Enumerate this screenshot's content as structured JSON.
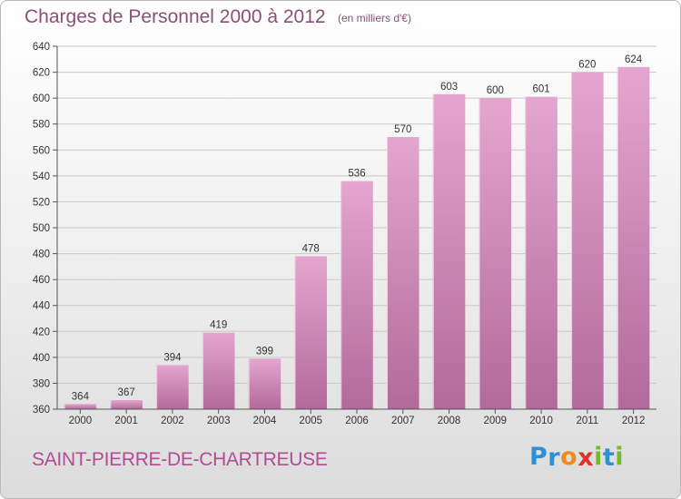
{
  "header": {
    "title": "Charges de Personnel 2000 à 2012",
    "unit": "(en milliers d'€)"
  },
  "footer": {
    "commune": "SAINT-PIERRE-DE-CHARTREUSE",
    "logo_letters": [
      {
        "char": "P",
        "color": "#2e8fd6"
      },
      {
        "char": "r",
        "color": "#2e8fd6"
      },
      {
        "char": "o",
        "color": "#f08a1c"
      },
      {
        "char": "x",
        "color": "#e2312b"
      },
      {
        "char": "i",
        "color": "#79b829"
      },
      {
        "char": "t",
        "color": "#2e8fd6"
      },
      {
        "char": "i",
        "color": "#79b829"
      }
    ]
  },
  "colors": {
    "bar_light": "#e4a6cf",
    "bar_dark": "#b26a9a",
    "title": "#8a4f78",
    "commune": "#b04d93"
  },
  "chart_data": {
    "type": "bar",
    "categories": [
      "2000",
      "2001",
      "2002",
      "2003",
      "2004",
      "2005",
      "2006",
      "2007",
      "2008",
      "2009",
      "2010",
      "2011",
      "2012"
    ],
    "values": [
      364,
      367,
      394,
      419,
      399,
      478,
      536,
      570,
      603,
      600,
      601,
      620,
      624
    ],
    "ylim": [
      360,
      640
    ],
    "yticks": [
      360,
      380,
      400,
      420,
      440,
      460,
      480,
      500,
      520,
      540,
      560,
      580,
      600,
      620,
      640
    ],
    "grid": true,
    "title": "Charges de Personnel 2000 à 2012",
    "xlabel": "",
    "ylabel": ""
  }
}
